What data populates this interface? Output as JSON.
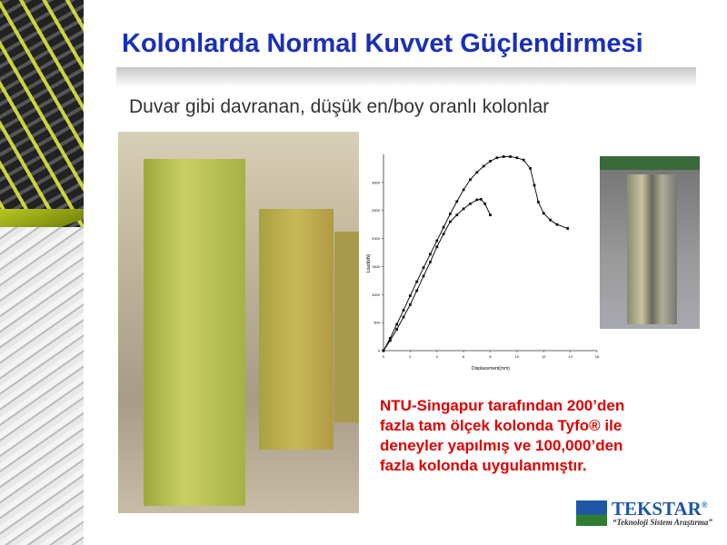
{
  "slide": {
    "title": "Kolonlarda Normal Kuvvet Güçlendirmesi",
    "subtitle": "Duvar gibi davranan, düşük en/boy oranlı kolonlar",
    "note_lines": [
      "NTU-Singapur tarafından 200’den",
      "fazla tam ölçek kolonda Tyfo® ile",
      "deneyler yapılmış ve 100,000’den",
      "fazla kolonda uygulanmıştır."
    ],
    "logo": {
      "name": "TEKSTAR",
      "registered": "®",
      "tagline": "“Teknoloji Sistem Araştırma”"
    },
    "colors": {
      "title": "#1a2fb8",
      "note": "#e00000",
      "logo_blue": "#1f56a5",
      "logo_green": "#2e7d32"
    }
  },
  "chart_data": {
    "type": "line",
    "xlabel": "Displacement(mm)",
    "ylabel": "Load(kN)",
    "xlim": [
      0,
      16
    ],
    "ylim": [
      0,
      3500
    ],
    "xticks": [
      "0",
      "2",
      "4",
      "6",
      "8",
      "10",
      "12",
      "14",
      "16"
    ],
    "yticks": [
      "0",
      "500",
      "1000",
      "1500",
      "2000",
      "2500",
      "3000"
    ],
    "grid": false,
    "series": [
      {
        "x": [
          0,
          0.5,
          1,
          1.5,
          2,
          2.5,
          3,
          3.5,
          4,
          4.5,
          5,
          5.5,
          6,
          6.5,
          7,
          7.5,
          8,
          8.5,
          9,
          9.5,
          10,
          10.5,
          11,
          11.3,
          11.6,
          12,
          12.5,
          13,
          13.8
        ],
        "y": [
          0,
          220,
          470,
          720,
          980,
          1230,
          1480,
          1720,
          1960,
          2200,
          2440,
          2660,
          2870,
          3050,
          3180,
          3290,
          3380,
          3440,
          3460,
          3460,
          3440,
          3400,
          3250,
          2950,
          2650,
          2450,
          2330,
          2250,
          2180
        ]
      },
      {
        "x": [
          0,
          0.5,
          1,
          1.5,
          2,
          2.5,
          3,
          3.5,
          4,
          4.5,
          5,
          5.5,
          6,
          6.5,
          7,
          7.3,
          7.6,
          8
        ],
        "y": [
          0,
          180,
          380,
          600,
          820,
          1070,
          1330,
          1580,
          1850,
          2080,
          2300,
          2420,
          2530,
          2620,
          2690,
          2700,
          2620,
          2420
        ]
      }
    ]
  }
}
